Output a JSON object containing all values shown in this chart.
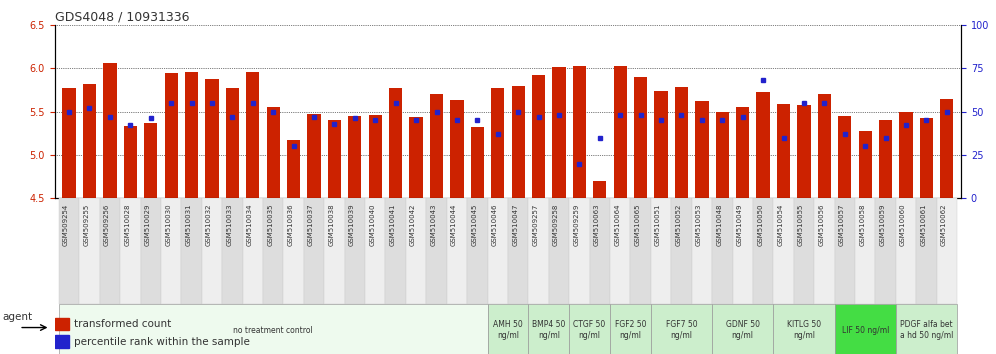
{
  "title": "GDS4048 / 10931336",
  "ylim_left": [
    4.5,
    6.5
  ],
  "ylim_right": [
    0,
    100
  ],
  "yticks_left": [
    4.5,
    5.0,
    5.5,
    6.0,
    6.5
  ],
  "yticks_right": [
    0,
    25,
    50,
    75,
    100
  ],
  "bar_color": "#cc2200",
  "dot_color": "#2222cc",
  "bar_width": 0.65,
  "samples": [
    "GSM509254",
    "GSM509255",
    "GSM509256",
    "GSM510028",
    "GSM510029",
    "GSM510030",
    "GSM510031",
    "GSM510032",
    "GSM510033",
    "GSM510034",
    "GSM510035",
    "GSM510036",
    "GSM510037",
    "GSM510038",
    "GSM510039",
    "GSM510040",
    "GSM510041",
    "GSM510042",
    "GSM510043",
    "GSM510044",
    "GSM510045",
    "GSM510046",
    "GSM510047",
    "GSM509257",
    "GSM509258",
    "GSM509259",
    "GSM510063",
    "GSM510064",
    "GSM510065",
    "GSM510051",
    "GSM510052",
    "GSM510053",
    "GSM510048",
    "GSM510049",
    "GSM510050",
    "GSM510054",
    "GSM510055",
    "GSM510056",
    "GSM510057",
    "GSM510058",
    "GSM510059",
    "GSM510060",
    "GSM510061",
    "GSM510062"
  ],
  "transformed_counts": [
    5.77,
    5.82,
    6.06,
    5.33,
    5.37,
    5.94,
    5.95,
    5.87,
    5.77,
    5.95,
    5.55,
    5.17,
    5.47,
    5.4,
    5.45,
    5.46,
    5.77,
    5.44,
    5.7,
    5.63,
    5.32,
    5.77,
    5.79,
    5.92,
    6.01,
    6.03,
    4.7,
    6.03,
    5.9,
    5.74,
    5.78,
    5.62,
    5.5,
    5.55,
    5.73,
    5.59,
    5.58,
    5.7,
    5.45,
    5.27,
    5.4,
    5.5,
    5.43,
    5.65
  ],
  "percentile_ranks": [
    50,
    52,
    47,
    42,
    46,
    55,
    55,
    55,
    47,
    55,
    50,
    30,
    47,
    43,
    46,
    45,
    55,
    45,
    50,
    45,
    45,
    37,
    50,
    47,
    48,
    20,
    35,
    48,
    48,
    45,
    48,
    45,
    45,
    47,
    68,
    35,
    55,
    55,
    37,
    30,
    35,
    42,
    45,
    50
  ],
  "agent_groups": [
    {
      "label": "no treatment control",
      "start": 0,
      "end": 21,
      "color": "#eefaee"
    },
    {
      "label": "AMH 50\nng/ml",
      "start": 21,
      "end": 23,
      "color": "#cceecc"
    },
    {
      "label": "BMP4 50\nng/ml",
      "start": 23,
      "end": 25,
      "color": "#cceecc"
    },
    {
      "label": "CTGF 50\nng/ml",
      "start": 25,
      "end": 27,
      "color": "#cceecc"
    },
    {
      "label": "FGF2 50\nng/ml",
      "start": 27,
      "end": 29,
      "color": "#cceecc"
    },
    {
      "label": "FGF7 50\nng/ml",
      "start": 29,
      "end": 32,
      "color": "#cceecc"
    },
    {
      "label": "GDNF 50\nng/ml",
      "start": 32,
      "end": 35,
      "color": "#cceecc"
    },
    {
      "label": "KITLG 50\nng/ml",
      "start": 35,
      "end": 38,
      "color": "#cceecc"
    },
    {
      "label": "LIF 50 ng/ml",
      "start": 38,
      "end": 41,
      "color": "#44dd44"
    },
    {
      "label": "PDGF alfa bet\na hd 50 ng/ml",
      "start": 41,
      "end": 44,
      "color": "#cceecc"
    }
  ],
  "agent_label": "agent",
  "legend_bar_label": "transformed count",
  "legend_dot_label": "percentile rank within the sample",
  "bg_color": "#ffffff",
  "plot_bg_color": "#ffffff",
  "tick_label_color_left": "#cc2200",
  "tick_label_color_right": "#2222cc",
  "grid_color": "#000000",
  "base_value": 4.5,
  "tick_bg_even": "#dddddd",
  "tick_bg_odd": "#eeeeee"
}
